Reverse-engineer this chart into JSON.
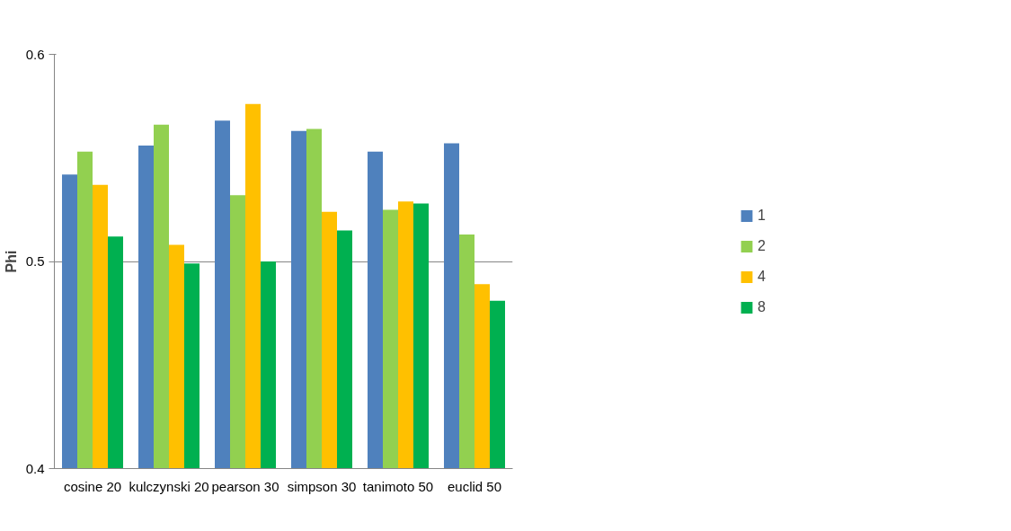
{
  "chart_data": {
    "type": "bar",
    "ylabel": "Phi",
    "categories": [
      "cosine 20",
      "kulczynski 20",
      "pearson 30",
      "simpson 30",
      "tanimoto 50",
      "euclid 50"
    ],
    "series": [
      {
        "name": "1",
        "color": "#4f81bd",
        "values": [
          0.542,
          0.556,
          0.568,
          0.563,
          0.553,
          0.557
        ]
      },
      {
        "name": "2",
        "color": "#92d050",
        "values": [
          0.553,
          0.566,
          0.532,
          0.564,
          0.525,
          0.513
        ]
      },
      {
        "name": "4",
        "color": "#ffc000",
        "values": [
          0.537,
          0.508,
          0.576,
          0.524,
          0.529,
          0.489
        ]
      },
      {
        "name": "8",
        "color": "#00b050",
        "values": [
          0.512,
          0.499,
          0.5,
          0.515,
          0.528,
          0.481
        ]
      }
    ],
    "ylim": [
      0.4,
      0.6
    ],
    "yticks": [
      0.4,
      0.5,
      0.6
    ],
    "grid": "y",
    "legend": "right"
  }
}
